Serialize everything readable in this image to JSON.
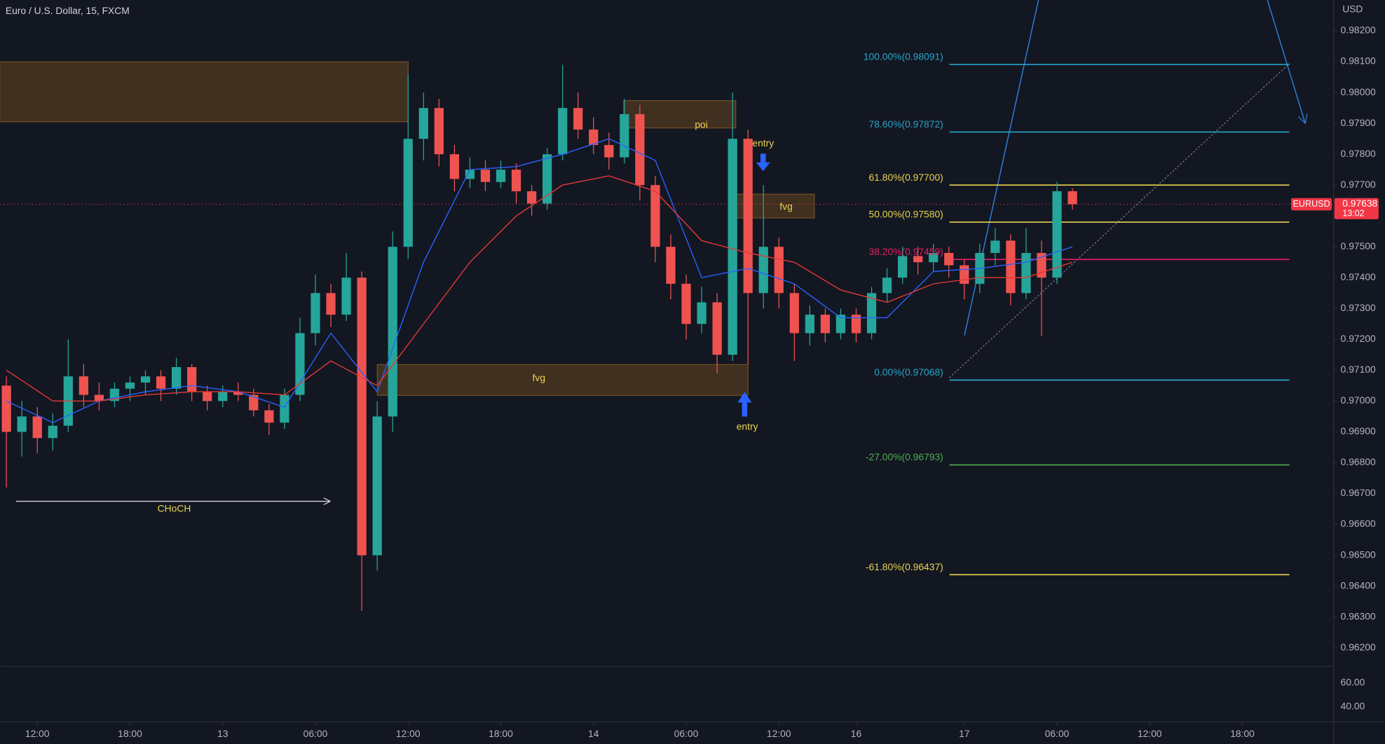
{
  "chart_data": {
    "type": "candlestick",
    "title": "Euro / U.S. Dollar, 15, FXCM",
    "y_unit": "USD",
    "up_color": "#26a69a",
    "down_color": "#ef5350",
    "x": [
      -2,
      -1,
      0,
      1,
      2,
      3,
      4,
      5,
      6,
      7,
      8,
      9,
      10,
      11,
      12,
      13,
      14,
      15,
      16,
      17,
      18,
      19,
      20,
      21,
      22,
      23,
      24,
      25,
      26,
      27,
      28,
      29,
      30,
      31,
      32,
      33,
      34,
      35,
      36,
      37,
      38,
      39,
      40,
      41,
      42,
      43,
      44,
      45,
      46,
      47,
      48,
      49,
      50,
      51,
      52,
      53,
      54,
      55,
      56,
      57,
      58,
      59,
      60,
      61,
      62,
      63,
      64,
      65,
      66,
      67
    ],
    "ohlc": [
      [
        0.9705,
        0.9708,
        0.9672,
        0.969
      ],
      [
        0.969,
        0.97,
        0.9682,
        0.9695
      ],
      [
        0.9695,
        0.9698,
        0.9683,
        0.9688
      ],
      [
        0.9688,
        0.9696,
        0.9684,
        0.9692
      ],
      [
        0.9692,
        0.972,
        0.969,
        0.9708
      ],
      [
        0.9708,
        0.9712,
        0.9698,
        0.9702
      ],
      [
        0.9702,
        0.9706,
        0.9697,
        0.97
      ],
      [
        0.97,
        0.9706,
        0.9698,
        0.9704
      ],
      [
        0.9704,
        0.9708,
        0.97,
        0.9706
      ],
      [
        0.9706,
        0.971,
        0.9702,
        0.9708
      ],
      [
        0.9708,
        0.971,
        0.97,
        0.9704
      ],
      [
        0.9704,
        0.9714,
        0.9702,
        0.9711
      ],
      [
        0.9711,
        0.9712,
        0.97,
        0.9703
      ],
      [
        0.9703,
        0.9705,
        0.9697,
        0.97
      ],
      [
        0.97,
        0.9705,
        0.9698,
        0.9703
      ],
      [
        0.9703,
        0.9706,
        0.97,
        0.9702
      ],
      [
        0.9702,
        0.9704,
        0.9695,
        0.9697
      ],
      [
        0.9697,
        0.9699,
        0.9689,
        0.9693
      ],
      [
        0.9693,
        0.9704,
        0.9691,
        0.9702
      ],
      [
        0.9702,
        0.9727,
        0.97,
        0.9722
      ],
      [
        0.9722,
        0.9741,
        0.9718,
        0.9735
      ],
      [
        0.9735,
        0.9738,
        0.9724,
        0.9728
      ],
      [
        0.9728,
        0.9748,
        0.9726,
        0.974
      ],
      [
        0.974,
        0.9742,
        0.9632,
        0.965
      ],
      [
        0.965,
        0.97,
        0.9645,
        0.9695
      ],
      [
        0.9695,
        0.9755,
        0.969,
        0.975
      ],
      [
        0.975,
        0.9806,
        0.9746,
        0.9785
      ],
      [
        0.9785,
        0.98,
        0.9778,
        0.9795
      ],
      [
        0.9795,
        0.9798,
        0.9776,
        0.978
      ],
      [
        0.978,
        0.9783,
        0.9768,
        0.9772
      ],
      [
        0.9772,
        0.9779,
        0.9769,
        0.9775
      ],
      [
        0.9775,
        0.9778,
        0.9768,
        0.9771
      ],
      [
        0.9771,
        0.9778,
        0.9769,
        0.9775
      ],
      [
        0.9775,
        0.9777,
        0.9764,
        0.9768
      ],
      [
        0.9768,
        0.977,
        0.976,
        0.9764
      ],
      [
        0.9764,
        0.9782,
        0.9762,
        0.978
      ],
      [
        0.978,
        0.9809,
        0.9778,
        0.9795
      ],
      [
        0.9795,
        0.98,
        0.9785,
        0.9788
      ],
      [
        0.9788,
        0.9792,
        0.978,
        0.9783
      ],
      [
        0.9783,
        0.9787,
        0.9775,
        0.9779
      ],
      [
        0.9779,
        0.9798,
        0.9777,
        0.9793
      ],
      [
        0.9793,
        0.9796,
        0.9765,
        0.977
      ],
      [
        0.977,
        0.9773,
        0.9745,
        0.975
      ],
      [
        0.975,
        0.9754,
        0.9733,
        0.9738
      ],
      [
        0.9738,
        0.9741,
        0.972,
        0.9725
      ],
      [
        0.9725,
        0.9737,
        0.9722,
        0.9732
      ],
      [
        0.9732,
        0.9735,
        0.9709,
        0.9715
      ],
      [
        0.9715,
        0.98,
        0.9713,
        0.9785
      ],
      [
        0.9785,
        0.9788,
        0.9712,
        0.9735
      ],
      [
        0.9735,
        0.977,
        0.973,
        0.975
      ],
      [
        0.975,
        0.9753,
        0.973,
        0.9735
      ],
      [
        0.9735,
        0.9738,
        0.9713,
        0.9722
      ],
      [
        0.9722,
        0.9731,
        0.9718,
        0.9728
      ],
      [
        0.9728,
        0.973,
        0.9719,
        0.9722
      ],
      [
        0.9722,
        0.973,
        0.972,
        0.9728
      ],
      [
        0.9728,
        0.973,
        0.9719,
        0.9722
      ],
      [
        0.9722,
        0.9737,
        0.972,
        0.9735
      ],
      [
        0.9735,
        0.9743,
        0.9732,
        0.974
      ],
      [
        0.974,
        0.975,
        0.9738,
        0.9747
      ],
      [
        0.9747,
        0.975,
        0.9741,
        0.9745
      ],
      [
        0.9745,
        0.9751,
        0.9742,
        0.9748
      ],
      [
        0.9748,
        0.975,
        0.974,
        0.9744
      ],
      [
        0.9744,
        0.9746,
        0.9733,
        0.9738
      ],
      [
        0.9738,
        0.9751,
        0.9735,
        0.9748
      ],
      [
        0.9748,
        0.9756,
        0.9744,
        0.9752
      ],
      [
        0.9752,
        0.9754,
        0.9731,
        0.9735
      ],
      [
        0.9735,
        0.9756,
        0.9733,
        0.9748
      ],
      [
        0.9748,
        0.9752,
        0.9721,
        0.974
      ],
      [
        0.974,
        0.9771,
        0.9738,
        0.9768
      ],
      [
        0.9768,
        0.9769,
        0.9762,
        0.97638
      ]
    ],
    "moving_averages": [
      {
        "color": "#2962ff",
        "x": [
          -2,
          1,
          4,
          7,
          10,
          13,
          16,
          19,
          22,
          25,
          28,
          31,
          34,
          37,
          40,
          43,
          46,
          49,
          52,
          55,
          58,
          61,
          64,
          67
        ],
        "values": [
          0.97,
          0.9693,
          0.97,
          0.9703,
          0.9705,
          0.9703,
          0.9698,
          0.9722,
          0.9703,
          0.9745,
          0.9775,
          0.9776,
          0.978,
          0.9785,
          0.9778,
          0.974,
          0.9743,
          0.9738,
          0.9727,
          0.9727,
          0.9742,
          0.9743,
          0.9745,
          0.975
        ]
      },
      {
        "color": "#e53935",
        "x": [
          -2,
          1,
          4,
          7,
          10,
          13,
          16,
          19,
          22,
          25,
          28,
          31,
          34,
          37,
          40,
          43,
          46,
          49,
          52,
          55,
          58,
          61,
          64,
          67
        ],
        "values": [
          0.971,
          0.97,
          0.97,
          0.9702,
          0.9703,
          0.9703,
          0.9702,
          0.9713,
          0.9705,
          0.9725,
          0.9745,
          0.976,
          0.977,
          0.9773,
          0.9768,
          0.9752,
          0.9748,
          0.9745,
          0.9736,
          0.9732,
          0.9738,
          0.974,
          0.974,
          0.9745
        ]
      }
    ],
    "xlim": [
      -2.4,
      83.9
    ],
    "ylim": [
      0.9614,
      0.983
    ],
    "xticks": [
      {
        "value": 0,
        "label": "12:00"
      },
      {
        "value": 6,
        "label": "18:00"
      },
      {
        "value": 12,
        "label": "13"
      },
      {
        "value": 18,
        "label": "06:00"
      },
      {
        "value": 24,
        "label": "12:00"
      },
      {
        "value": 30,
        "label": "18:00"
      },
      {
        "value": 36,
        "label": "14"
      },
      {
        "value": 42,
        "label": "06:00"
      },
      {
        "value": 48,
        "label": "12:00"
      },
      {
        "value": 53,
        "label": "16"
      },
      {
        "value": 60,
        "label": "17"
      },
      {
        "value": 66,
        "label": "06:00"
      },
      {
        "value": 72,
        "label": "12:00"
      },
      {
        "value": 78,
        "label": "18:00"
      }
    ],
    "yticks": [
      {
        "value": 0.962,
        "label": "0.96200"
      },
      {
        "value": 0.963,
        "label": "0.96300"
      },
      {
        "value": 0.964,
        "label": "0.96400"
      },
      {
        "value": 0.965,
        "label": "0.96500"
      },
      {
        "value": 0.966,
        "label": "0.96600"
      },
      {
        "value": 0.967,
        "label": "0.96700"
      },
      {
        "value": 0.968,
        "label": "0.96800"
      },
      {
        "value": 0.969,
        "label": "0.96900"
      },
      {
        "value": 0.97,
        "label": "0.97000"
      },
      {
        "value": 0.971,
        "label": "0.97100"
      },
      {
        "value": 0.972,
        "label": "0.97200"
      },
      {
        "value": 0.973,
        "label": "0.97300"
      },
      {
        "value": 0.974,
        "label": "0.97400"
      },
      {
        "value": 0.975,
        "label": "0.97500"
      },
      {
        "value": 0.976,
        "label": "0.97600"
      },
      {
        "value": 0.977,
        "label": "0.97700"
      },
      {
        "value": 0.978,
        "label": "0.97800"
      },
      {
        "value": 0.979,
        "label": "0.97900"
      },
      {
        "value": 0.98,
        "label": "0.98000"
      },
      {
        "value": 0.981,
        "label": "0.98100"
      },
      {
        "value": 0.982,
        "label": "0.98200"
      }
    ],
    "last_price": {
      "symbol": "EURUSD",
      "value": 0.97638,
      "label": "0.97638",
      "countdown": "13:02",
      "color": "#f23645"
    },
    "fibonacci": {
      "levels": [
        {
          "label": "100.00%(0.98091)",
          "value": 0.98091,
          "color": "#26a6c9"
        },
        {
          "label": "78.60%(0.97872)",
          "value": 0.97872,
          "color": "#26a6c9"
        },
        {
          "label": "61.80%(0.97700)",
          "value": 0.977,
          "color": "#e8d44d"
        },
        {
          "label": "50.00%(0.97580)",
          "value": 0.9758,
          "color": "#e8d44d"
        },
        {
          "label": "38.20%(0.97459)",
          "value": 0.97459,
          "color": "#e91e63"
        },
        {
          "label": "0.00%(0.97068)",
          "value": 0.97068,
          "color": "#26a6c9"
        },
        {
          "label": "-27.00%(0.96793)",
          "value": 0.96793,
          "color": "#4caf50"
        },
        {
          "label": "-61.80%(0.96437)",
          "value": 0.96437,
          "color": "#e8d44d"
        }
      ]
    },
    "annotations": {
      "zones": [
        "poi",
        "fvg",
        "fvg"
      ],
      "entries": [
        "entry",
        "entry"
      ],
      "choch": "CHoCH"
    },
    "indicator_pane": {
      "yticks": [
        "60.00",
        "40.00"
      ]
    }
  }
}
